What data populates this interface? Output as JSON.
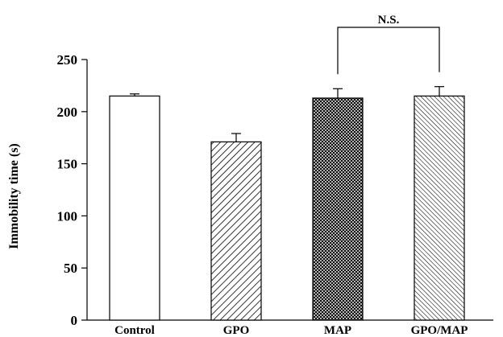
{
  "chart_data": {
    "type": "bar",
    "categories": [
      "Control",
      "GPO",
      "MAP",
      "GPO/MAP"
    ],
    "series": [
      {
        "values": [
          215,
          171,
          213,
          215
        ],
        "errors": [
          2,
          8,
          9,
          9
        ]
      }
    ],
    "bar_fills": [
      "none",
      "diagonal-hatch",
      "cross-hatch",
      "dense-diagonal-hatch"
    ],
    "ylabel": "Immobility time  (s)",
    "xlabel": "",
    "ylim": [
      0,
      250
    ],
    "yticks": [
      0,
      50,
      100,
      150,
      200,
      250
    ],
    "grid": false,
    "annotations": [
      {
        "text": "N.S.",
        "between": [
          "MAP",
          "GPO/MAP"
        ]
      }
    ]
  }
}
